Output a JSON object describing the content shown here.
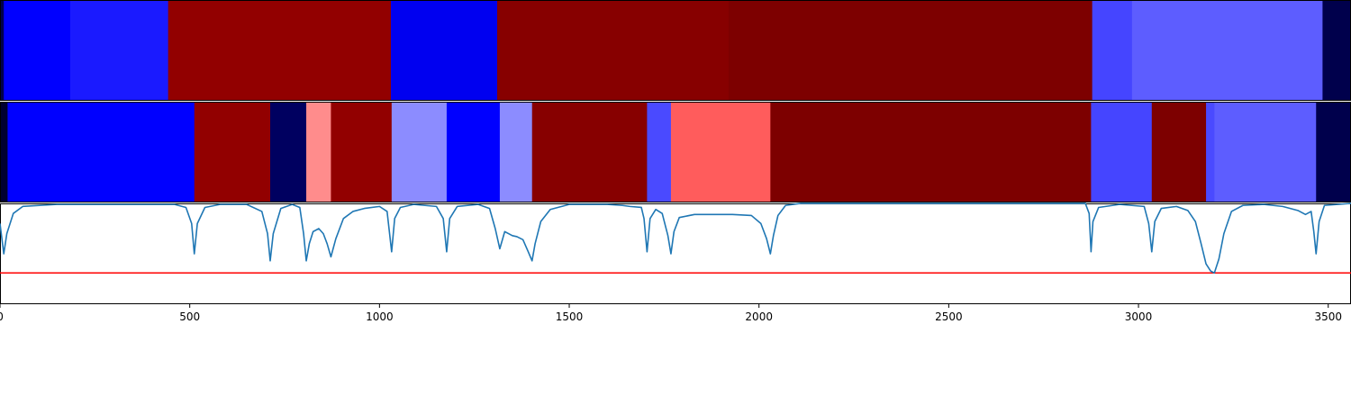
{
  "chart_data": {
    "type": "heatmap",
    "title": "",
    "xlabel": "",
    "ylabel": "",
    "xlim": [
      0,
      3560
    ],
    "xticks": [
      "0",
      "500",
      "1000",
      "1500",
      "2000",
      "2500",
      "3000",
      "3500"
    ],
    "xtick_values": [
      0,
      500,
      1000,
      1500,
      2000,
      2500,
      3000,
      3500
    ],
    "rows": [
      {
        "segments": [
          {
            "start": 0,
            "end": 10,
            "color": "#00004c"
          },
          {
            "start": 10,
            "end": 185,
            "color": "#0000ff"
          },
          {
            "start": 185,
            "end": 443,
            "color": "#1a1aff"
          },
          {
            "start": 443,
            "end": 1030,
            "color": "#920000"
          },
          {
            "start": 1030,
            "end": 1310,
            "color": "#0000f0"
          },
          {
            "start": 1310,
            "end": 1920,
            "color": "#870000"
          },
          {
            "start": 1920,
            "end": 2878,
            "color": "#7d0000"
          },
          {
            "start": 2878,
            "end": 2983,
            "color": "#4545ff"
          },
          {
            "start": 2983,
            "end": 3485,
            "color": "#5d5dff"
          },
          {
            "start": 3485,
            "end": 3560,
            "color": "#00004c"
          }
        ]
      },
      {
        "segments": [
          {
            "start": 0,
            "end": 20,
            "color": "#000030"
          },
          {
            "start": 20,
            "end": 512,
            "color": "#0000ff"
          },
          {
            "start": 512,
            "end": 712,
            "color": "#920000"
          },
          {
            "start": 712,
            "end": 807,
            "color": "#000060"
          },
          {
            "start": 807,
            "end": 872,
            "color": "#ff8c8c"
          },
          {
            "start": 872,
            "end": 1032,
            "color": "#920000"
          },
          {
            "start": 1032,
            "end": 1177,
            "color": "#8c8cff"
          },
          {
            "start": 1177,
            "end": 1317,
            "color": "#0000ff"
          },
          {
            "start": 1317,
            "end": 1402,
            "color": "#8c8cff"
          },
          {
            "start": 1402,
            "end": 1705,
            "color": "#870000"
          },
          {
            "start": 1705,
            "end": 1768,
            "color": "#4a4aff"
          },
          {
            "start": 1768,
            "end": 2030,
            "color": "#ff5c5c"
          },
          {
            "start": 2030,
            "end": 2875,
            "color": "#7d0000"
          },
          {
            "start": 2875,
            "end": 3035,
            "color": "#4545ff"
          },
          {
            "start": 3035,
            "end": 3178,
            "color": "#7d0000"
          },
          {
            "start": 3178,
            "end": 3200,
            "color": "#4a4aff"
          },
          {
            "start": 3200,
            "end": 3468,
            "color": "#5d5dff"
          },
          {
            "start": 3468,
            "end": 3560,
            "color": "#00004c"
          }
        ]
      }
    ],
    "line": {
      "color": "#1f77b4",
      "ylim": [
        0,
        1
      ],
      "points": [
        [
          0,
          0.8
        ],
        [
          10,
          0.5
        ],
        [
          18,
          0.7
        ],
        [
          35,
          0.9
        ],
        [
          60,
          0.97
        ],
        [
          150,
          0.99
        ],
        [
          460,
          0.99
        ],
        [
          490,
          0.96
        ],
        [
          505,
          0.8
        ],
        [
          512,
          0.5
        ],
        [
          520,
          0.8
        ],
        [
          540,
          0.96
        ],
        [
          580,
          0.99
        ],
        [
          650,
          0.99
        ],
        [
          690,
          0.92
        ],
        [
          705,
          0.7
        ],
        [
          712,
          0.43
        ],
        [
          720,
          0.7
        ],
        [
          740,
          0.95
        ],
        [
          770,
          0.99
        ],
        [
          790,
          0.96
        ],
        [
          800,
          0.7
        ],
        [
          807,
          0.43
        ],
        [
          815,
          0.6
        ],
        [
          825,
          0.72
        ],
        [
          840,
          0.75
        ],
        [
          852,
          0.7
        ],
        [
          862,
          0.6
        ],
        [
          872,
          0.47
        ],
        [
          885,
          0.65
        ],
        [
          905,
          0.85
        ],
        [
          930,
          0.92
        ],
        [
          960,
          0.95
        ],
        [
          1000,
          0.97
        ],
        [
          1020,
          0.92
        ],
        [
          1032,
          0.52
        ],
        [
          1040,
          0.85
        ],
        [
          1055,
          0.96
        ],
        [
          1090,
          0.99
        ],
        [
          1150,
          0.97
        ],
        [
          1168,
          0.85
        ],
        [
          1177,
          0.52
        ],
        [
          1185,
          0.85
        ],
        [
          1205,
          0.97
        ],
        [
          1260,
          0.99
        ],
        [
          1290,
          0.95
        ],
        [
          1305,
          0.75
        ],
        [
          1317,
          0.55
        ],
        [
          1330,
          0.72
        ],
        [
          1340,
          0.7
        ],
        [
          1350,
          0.68
        ],
        [
          1362,
          0.67
        ],
        [
          1378,
          0.64
        ],
        [
          1392,
          0.52
        ],
        [
          1402,
          0.43
        ],
        [
          1410,
          0.6
        ],
        [
          1425,
          0.82
        ],
        [
          1450,
          0.94
        ],
        [
          1500,
          0.99
        ],
        [
          1600,
          0.99
        ],
        [
          1640,
          0.98
        ],
        [
          1660,
          0.97
        ],
        [
          1690,
          0.96
        ],
        [
          1697,
          0.85
        ],
        [
          1705,
          0.52
        ],
        [
          1713,
          0.85
        ],
        [
          1728,
          0.94
        ],
        [
          1745,
          0.9
        ],
        [
          1760,
          0.68
        ],
        [
          1768,
          0.5
        ],
        [
          1776,
          0.72
        ],
        [
          1790,
          0.86
        ],
        [
          1830,
          0.89
        ],
        [
          1880,
          0.89
        ],
        [
          1930,
          0.89
        ],
        [
          1980,
          0.88
        ],
        [
          2005,
          0.8
        ],
        [
          2020,
          0.65
        ],
        [
          2030,
          0.5
        ],
        [
          2038,
          0.68
        ],
        [
          2050,
          0.88
        ],
        [
          2070,
          0.98
        ],
        [
          2110,
          1.0
        ],
        [
          2860,
          1.0
        ],
        [
          2870,
          0.9
        ],
        [
          2875,
          0.52
        ],
        [
          2880,
          0.82
        ],
        [
          2895,
          0.96
        ],
        [
          2950,
          0.99
        ],
        [
          3015,
          0.97
        ],
        [
          3027,
          0.8
        ],
        [
          3035,
          0.52
        ],
        [
          3043,
          0.82
        ],
        [
          3060,
          0.95
        ],
        [
          3100,
          0.97
        ],
        [
          3130,
          0.93
        ],
        [
          3150,
          0.82
        ],
        [
          3165,
          0.6
        ],
        [
          3178,
          0.4
        ],
        [
          3190,
          0.33
        ],
        [
          3200,
          0.31
        ],
        [
          3212,
          0.45
        ],
        [
          3225,
          0.7
        ],
        [
          3245,
          0.92
        ],
        [
          3275,
          0.98
        ],
        [
          3330,
          0.99
        ],
        [
          3380,
          0.97
        ],
        [
          3420,
          0.93
        ],
        [
          3440,
          0.89
        ],
        [
          3455,
          0.92
        ],
        [
          3462,
          0.72
        ],
        [
          3468,
          0.5
        ],
        [
          3476,
          0.82
        ],
        [
          3490,
          0.98
        ],
        [
          3560,
          1.0
        ]
      ]
    },
    "threshold": {
      "value": 0.31,
      "color": "#ff0000"
    }
  }
}
